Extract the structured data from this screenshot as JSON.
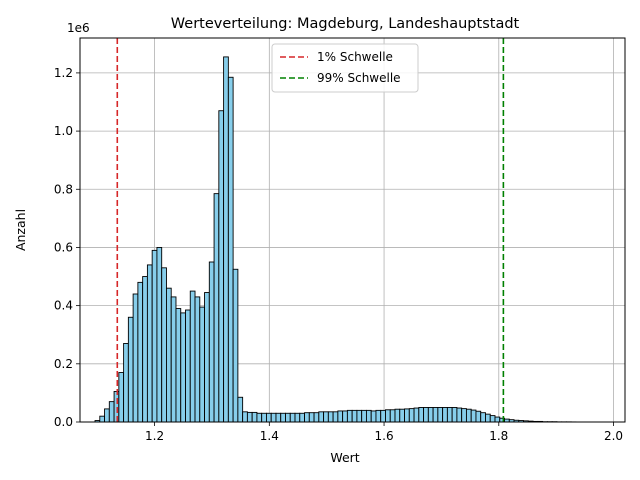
{
  "chart_data": {
    "type": "bar",
    "title": "Werteverteilung: Magdeburg, Landeshauptstadt",
    "xlabel": "Wert",
    "ylabel": "Anzahl",
    "y_scale_label": "1e6",
    "xlim": [
      1.07,
      2.02
    ],
    "ylim": [
      0,
      1.32
    ],
    "x_ticks": [
      1.2,
      1.4,
      1.6,
      1.8,
      2.0
    ],
    "x_tick_labels": [
      "1.2",
      "1.4",
      "1.6",
      "1.8",
      "2.0"
    ],
    "y_ticks": [
      0.0,
      0.2,
      0.4,
      0.6,
      0.8,
      1.0,
      1.2
    ],
    "y_tick_labels": [
      "0.0",
      "0.2",
      "0.4",
      "0.6",
      "0.8",
      "1.0",
      "1.2"
    ],
    "grid": true,
    "legend_position": "top-center",
    "bar_width": 0.0083,
    "bar_color": "#87ceeb",
    "bar_edge_color": "#000000",
    "bins_start": [
      1.0962,
      1.1045,
      1.1128,
      1.1211,
      1.1294,
      1.1377,
      1.146,
      1.1543,
      1.1626,
      1.1709,
      1.1792,
      1.1875,
      1.1958,
      1.2041,
      1.2124,
      1.2207,
      1.229,
      1.2373,
      1.2456,
      1.2539,
      1.2622,
      1.2705,
      1.2788,
      1.2871,
      1.2954,
      1.3037,
      1.312,
      1.3203,
      1.3286,
      1.3369,
      1.3452,
      1.3535,
      1.3618,
      1.3701,
      1.3784,
      1.3867,
      1.395,
      1.4033,
      1.4116,
      1.4199,
      1.4282,
      1.4365,
      1.4448,
      1.4531,
      1.4614,
      1.4697,
      1.478,
      1.4863,
      1.4946,
      1.5029,
      1.5112,
      1.5195,
      1.5278,
      1.5361,
      1.5444,
      1.5527,
      1.561,
      1.5693,
      1.5776,
      1.5859,
      1.5942,
      1.6025,
      1.6108,
      1.6191,
      1.6274,
      1.6357,
      1.644,
      1.6523,
      1.6606,
      1.6689,
      1.6772,
      1.6855,
      1.6938,
      1.7021,
      1.7104,
      1.7187,
      1.727,
      1.7353,
      1.7436,
      1.7519,
      1.7602,
      1.7685,
      1.7768,
      1.7851,
      1.7934,
      1.8017,
      1.81,
      1.8183,
      1.8266,
      1.8349,
      1.8432,
      1.8515,
      1.8598,
      1.8681,
      1.8764,
      1.8847,
      1.893,
      1.9013,
      1.9096,
      1.9179,
      1.9262
    ],
    "counts": [
      0.005,
      0.02,
      0.045,
      0.07,
      0.105,
      0.17,
      0.27,
      0.36,
      0.44,
      0.48,
      0.5,
      0.54,
      0.59,
      0.6,
      0.53,
      0.46,
      0.43,
      0.39,
      0.375,
      0.385,
      0.45,
      0.43,
      0.395,
      0.445,
      0.55,
      0.785,
      1.07,
      1.255,
      1.185,
      0.525,
      0.085,
      0.035,
      0.033,
      0.033,
      0.03,
      0.03,
      0.03,
      0.03,
      0.03,
      0.03,
      0.03,
      0.03,
      0.03,
      0.03,
      0.032,
      0.032,
      0.032,
      0.035,
      0.035,
      0.035,
      0.035,
      0.038,
      0.038,
      0.04,
      0.04,
      0.04,
      0.04,
      0.04,
      0.038,
      0.04,
      0.04,
      0.042,
      0.042,
      0.044,
      0.044,
      0.045,
      0.046,
      0.048,
      0.05,
      0.05,
      0.05,
      0.05,
      0.05,
      0.05,
      0.05,
      0.05,
      0.048,
      0.046,
      0.044,
      0.041,
      0.037,
      0.032,
      0.027,
      0.022,
      0.017,
      0.013,
      0.01,
      0.008,
      0.006,
      0.005,
      0.004,
      0.003,
      0.002,
      0.002,
      0.001,
      0.001,
      0.001,
      0.0005,
      0.0005,
      0.0005,
      0.0003
    ],
    "thresholds": [
      {
        "name": "1% Schwelle",
        "x": 1.135,
        "color": "#d62728"
      },
      {
        "name": "99% Schwelle",
        "x": 1.808,
        "color": "#008000"
      }
    ]
  }
}
